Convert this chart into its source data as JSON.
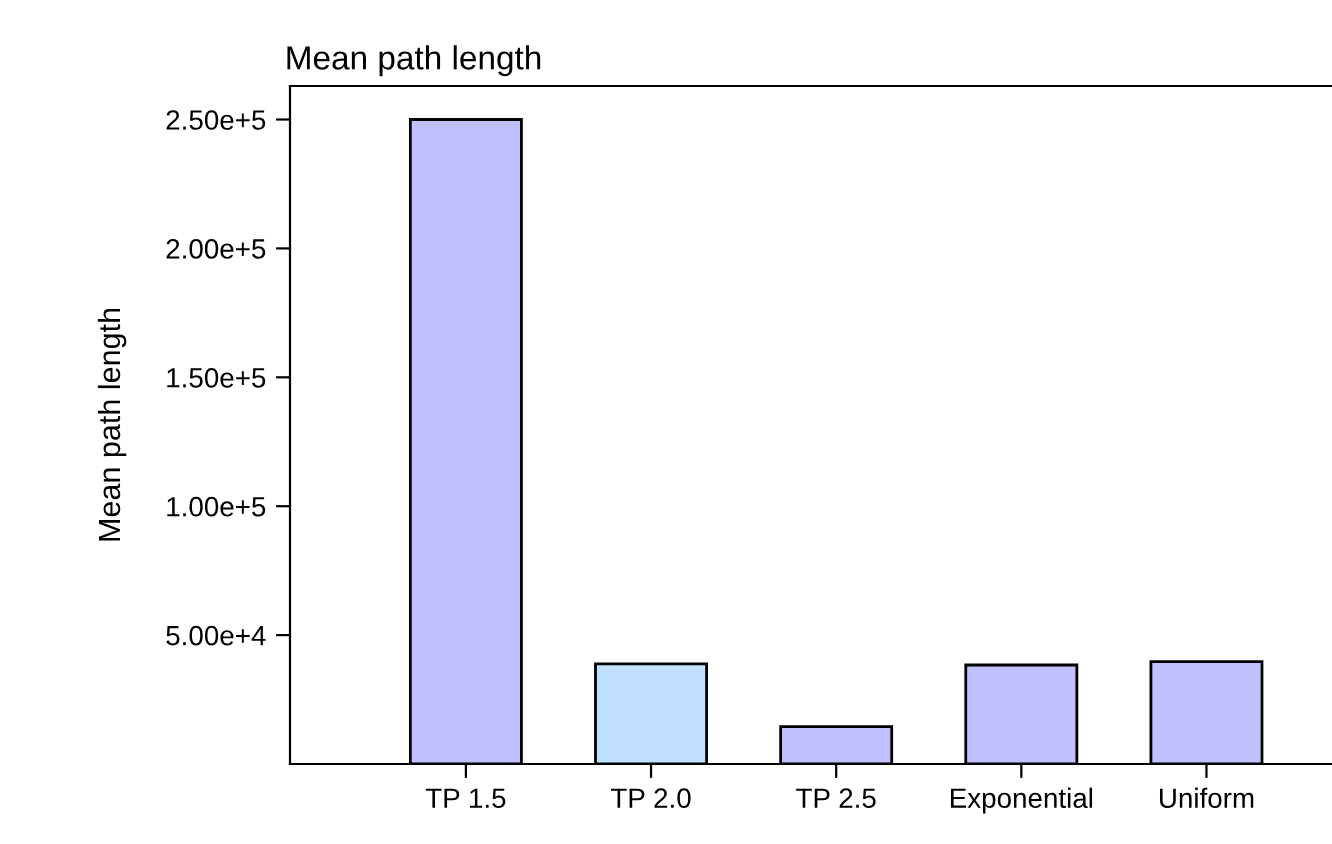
{
  "chart_data": {
    "type": "bar",
    "title": "Mean path length",
    "ylabel": "Mean path length",
    "categories": [
      "TP 1.5",
      "TP 2.0",
      "TP 2.5",
      "Exponential",
      "Uniform"
    ],
    "values": [
      250000,
      38800,
      14500,
      38400,
      39700
    ],
    "colors": [
      "#c0c0ff",
      "#c0e0ff",
      "#c0c0ff",
      "#c0c0ff",
      "#c0c0ff"
    ],
    "ylim": [
      0,
      263000
    ],
    "yticks": [
      {
        "value": 50000,
        "label": "5.00e+4"
      },
      {
        "value": 100000,
        "label": "1.00e+5"
      },
      {
        "value": 150000,
        "label": "1.50e+5"
      },
      {
        "value": 200000,
        "label": "2.00e+5"
      },
      {
        "value": 250000,
        "label": "2.50e+5"
      }
    ],
    "grid": false
  }
}
